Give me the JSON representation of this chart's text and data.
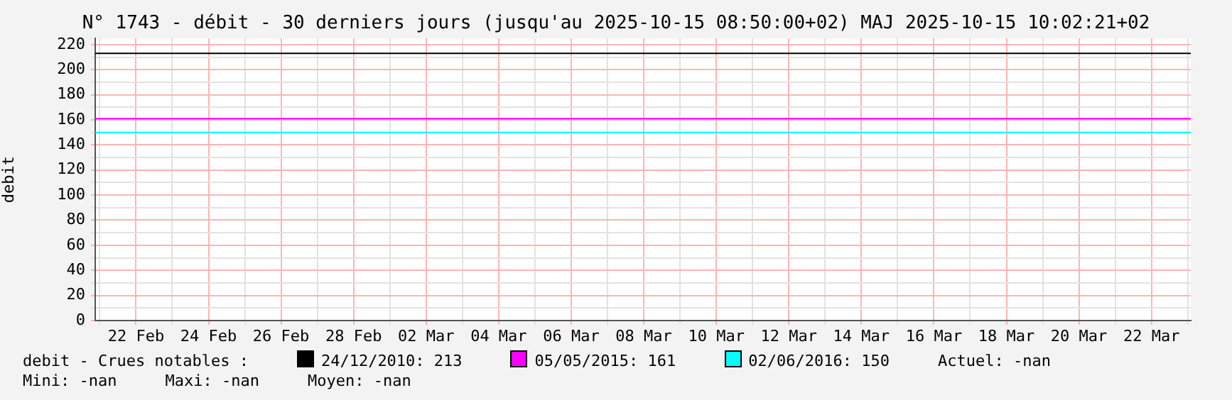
{
  "chart_data": {
    "type": "line",
    "title": "N° 1743 - débit - 30 derniers jours (jusqu'au 2025-10-15 08:50:00+02) MAJ 2025-10-15 10:02:21+02",
    "ylabel": "debit",
    "legend_title": "debit - Crues notables :",
    "xlim": [
      "--02-20T21:00",
      "--03-23T02:00"
    ],
    "ylim": [
      0,
      225
    ],
    "xticks": [
      {
        "value": "--02-21",
        "label": null
      },
      {
        "value": "--02-22",
        "label": "22 Feb"
      },
      {
        "value": "--02-23",
        "label": null
      },
      {
        "value": "--02-24",
        "label": "24 Feb"
      },
      {
        "value": "--02-25",
        "label": null
      },
      {
        "value": "--02-26",
        "label": "26 Feb"
      },
      {
        "value": "--02-27",
        "label": null
      },
      {
        "value": "--02-28",
        "label": "28 Feb"
      },
      {
        "value": "--03-01",
        "label": null
      },
      {
        "value": "--03-02",
        "label": "02 Mar"
      },
      {
        "value": "--03-03",
        "label": null
      },
      {
        "value": "--03-04",
        "label": "04 Mar"
      },
      {
        "value": "--03-05",
        "label": null
      },
      {
        "value": "--03-06",
        "label": "06 Mar"
      },
      {
        "value": "--03-07",
        "label": null
      },
      {
        "value": "--03-08",
        "label": "08 Mar"
      },
      {
        "value": "--03-09",
        "label": null
      },
      {
        "value": "--03-10",
        "label": "10 Mar"
      },
      {
        "value": "--03-11",
        "label": null
      },
      {
        "value": "--03-12",
        "label": "12 Mar"
      },
      {
        "value": "--03-13",
        "label": null
      },
      {
        "value": "--03-14",
        "label": "14 Mar"
      },
      {
        "value": "--03-15",
        "label": null
      },
      {
        "value": "--03-16",
        "label": "16 Mar"
      },
      {
        "value": "--03-17",
        "label": null
      },
      {
        "value": "--03-18",
        "label": "18 Mar"
      },
      {
        "value": "--03-19",
        "label": null
      },
      {
        "value": "--03-20",
        "label": "20 Mar"
      },
      {
        "value": "--03-21",
        "label": null
      },
      {
        "value": "--03-22",
        "label": "22 Mar"
      },
      {
        "value": "--03-23",
        "label": null
      }
    ],
    "yticks": [
      0,
      {
        "value": 10,
        "label": null
      },
      20,
      {
        "value": 30,
        "label": null
      },
      40,
      {
        "value": 50,
        "label": null
      },
      60,
      {
        "value": 70,
        "label": null
      },
      80,
      {
        "value": 90,
        "label": null
      },
      100,
      {
        "value": 110,
        "label": null
      },
      120,
      {
        "value": 130,
        "label": null
      },
      140,
      {
        "value": 150,
        "label": null
      },
      160,
      {
        "value": 170,
        "label": null
      },
      180,
      {
        "value": 190,
        "label": null
      },
      200,
      {
        "value": 210,
        "label": null
      },
      220
    ],
    "grid": true,
    "legend": "bottom",
    "ref_lines": [
      {
        "axis": "y",
        "value": 213,
        "label": "24/12/2010: 213",
        "color": "#000000"
      },
      {
        "axis": "y",
        "value": 161,
        "label": "05/05/2015: 161",
        "color": "#ff00ff"
      },
      {
        "axis": "y",
        "value": 150,
        "label": "02/06/2016: 150",
        "color": "#00ffff"
      }
    ],
    "annotations": [
      "Actuel: -nan",
      "Mini: -nan",
      "Maxi: -nan",
      "Moyen: -nan"
    ]
  }
}
